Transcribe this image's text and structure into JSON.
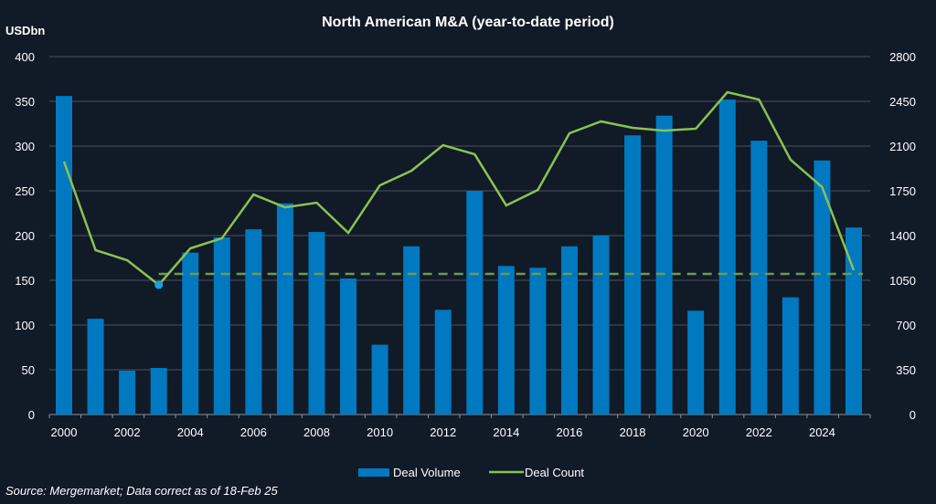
{
  "chart_data": {
    "type": "bar+line",
    "title": "North American M&A (year-to-date period)",
    "ylabel_left": "USDbn",
    "source": "Source: Mergemarket; Data correct as of 18-Feb 25",
    "categories": [
      "2000",
      "2001",
      "2002",
      "2003",
      "2004",
      "2005",
      "2006",
      "2007",
      "2008",
      "2009",
      "2010",
      "2011",
      "2012",
      "2013",
      "2014",
      "2015",
      "2016",
      "2017",
      "2018",
      "2019",
      "2020",
      "2021",
      "2022",
      "2023",
      "2024",
      "2025"
    ],
    "x_tick_labels": [
      "2000",
      "2002",
      "2004",
      "2006",
      "2008",
      "2010",
      "2012",
      "2014",
      "2016",
      "2018",
      "2020",
      "2022",
      "2024"
    ],
    "ylim_left": [
      0,
      400
    ],
    "yticks_left": [
      0,
      50,
      100,
      150,
      200,
      250,
      300,
      350,
      400
    ],
    "ylim_right": [
      0,
      2800
    ],
    "yticks_right": [
      0,
      350,
      700,
      1050,
      1400,
      1750,
      2100,
      2450,
      2800
    ],
    "grid": true,
    "legend_position": "bottom",
    "series": [
      {
        "name": "Deal Volume",
        "type": "bar",
        "axis": "left",
        "color": "#0079c1",
        "values": [
          356,
          107,
          49,
          52,
          181,
          198,
          207,
          236,
          204,
          152,
          78,
          188,
          117,
          250,
          166,
          164,
          188,
          200,
          312,
          334,
          116,
          352,
          306,
          131,
          284,
          209
        ]
      },
      {
        "name": "Deal Count",
        "type": "line",
        "axis": "right",
        "color": "#8cc152",
        "values": [
          1979,
          1286,
          1207,
          1014,
          1300,
          1379,
          1721,
          1621,
          1657,
          1421,
          1793,
          1907,
          2107,
          2036,
          1636,
          1757,
          2200,
          2293,
          2243,
          2221,
          2236,
          2521,
          2464,
          1993,
          1779,
          1129
        ]
      }
    ],
    "reference_line": {
      "axis": "right",
      "value": 1100,
      "from": "2003",
      "to": "2025",
      "style": "dashed",
      "color": "#6f9a4f"
    },
    "highlight_point": {
      "series": "Deal Count",
      "category": "2003",
      "color": "#1a9fe0"
    }
  }
}
